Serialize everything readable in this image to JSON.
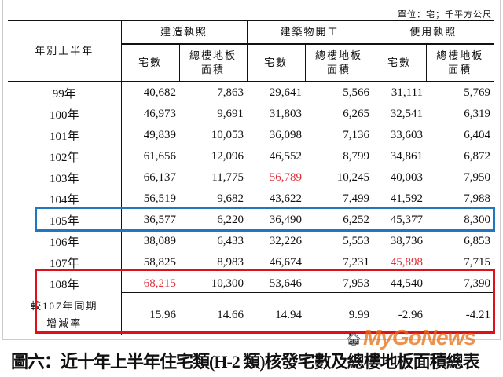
{
  "unit": "單位：宅；千平方公尺",
  "header": {
    "row_label": "年別上半年",
    "groups": [
      "建造執照",
      "建築物開工",
      "使用執照"
    ],
    "sub_count": "宅數",
    "sub_area_line1": "總樓地板",
    "sub_area_line2": "面積"
  },
  "rows": [
    {
      "year": "99年",
      "values": [
        "40,682",
        "7,863",
        "29,641",
        "5,566",
        "31,111",
        "5,769"
      ]
    },
    {
      "year": "100年",
      "values": [
        "46,973",
        "9,691",
        "31,803",
        "6,265",
        "32,541",
        "6,319"
      ]
    },
    {
      "year": "101年",
      "values": [
        "49,839",
        "10,053",
        "36,098",
        "7,136",
        "33,603",
        "6,404"
      ]
    },
    {
      "year": "102年",
      "values": [
        "61,656",
        "12,096",
        "46,552",
        "8,799",
        "34,861",
        "6,872"
      ]
    },
    {
      "year": "103年",
      "values": [
        "66,137",
        "11,775",
        "56,789",
        "10,245",
        "40,003",
        "7,950"
      ]
    },
    {
      "year": "104年",
      "values": [
        "56,519",
        "9,682",
        "43,622",
        "7,499",
        "41,592",
        "7,988"
      ]
    },
    {
      "year": "105年",
      "values": [
        "36,577",
        "6,220",
        "36,490",
        "6,252",
        "45,377",
        "8,300"
      ]
    },
    {
      "year": "106年",
      "values": [
        "38,089",
        "6,433",
        "32,226",
        "5,553",
        "38,736",
        "6,853"
      ]
    },
    {
      "year": "107年",
      "values": [
        "58,825",
        "8,983",
        "46,674",
        "7,231",
        "45,898",
        "7,715"
      ]
    },
    {
      "year": "108年",
      "values": [
        "68,215",
        "10,300",
        "53,646",
        "7,953",
        "44,540",
        "7,390"
      ]
    }
  ],
  "change_row": {
    "label_line1": "較107年同期",
    "label_line2": "增減率",
    "values": [
      "15.96",
      "14.66",
      "14.94",
      "9.99",
      "-2.96",
      "-4.21"
    ]
  },
  "highlight_colors": {
    "max_value": "#e0303a",
    "blue_box": "#1f77c0",
    "red_box": "#e0101a"
  },
  "caption": "圖六：近十年上半年住宅類(H-2 類)核發宅數及總樓地板面積總表",
  "watermark": "MyGoNews"
}
